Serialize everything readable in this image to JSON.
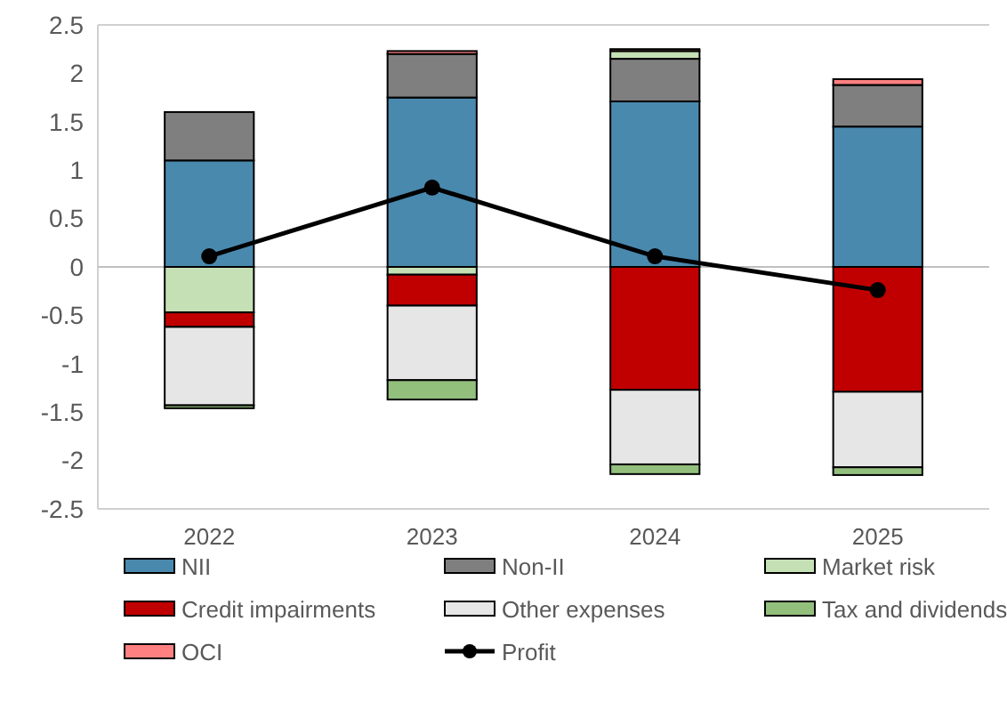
{
  "chart_data": {
    "type": "bar",
    "stacked": true,
    "categories": [
      "2022",
      "2023",
      "2024",
      "2025"
    ],
    "series": [
      {
        "name": "NII",
        "color": "#4a89ae",
        "values": [
          1.1,
          1.75,
          1.71,
          1.45
        ]
      },
      {
        "name": "Non-II",
        "color": "#7f7f7f",
        "values": [
          0.5,
          0.45,
          0.44,
          0.43
        ]
      },
      {
        "name": "Market risk",
        "color": "#c5e0b4",
        "values": [
          -0.47,
          -0.08,
          0.08,
          null
        ]
      },
      {
        "name": "Credit impairments",
        "color": "#c00000",
        "values": [
          -0.15,
          -0.32,
          -1.27,
          -1.29
        ]
      },
      {
        "name": "Other expenses",
        "color": "#e7e6e6",
        "values": [
          -0.81,
          -0.77,
          -0.77,
          -0.78
        ]
      },
      {
        "name": "Tax and dividends",
        "color": "#93bf7d",
        "values": [
          -0.03,
          -0.2,
          -0.1,
          -0.08
        ]
      },
      {
        "name": "OCI",
        "color": "#ff8080",
        "values": [
          null,
          0.03,
          0.02,
          0.06
        ]
      },
      {
        "name": "Profit",
        "type": "line",
        "color": "#000000",
        "marker": "circle",
        "line_style": "solid",
        "values": [
          0.11,
          0.82,
          0.11,
          -0.24
        ]
      }
    ],
    "ylim": [
      -2.5,
      2.5
    ],
    "yticks": [
      -2.5,
      -2,
      -1.5,
      -1,
      -0.5,
      0,
      0.5,
      1,
      1.5,
      2,
      2.5
    ],
    "legend": "bottom"
  }
}
